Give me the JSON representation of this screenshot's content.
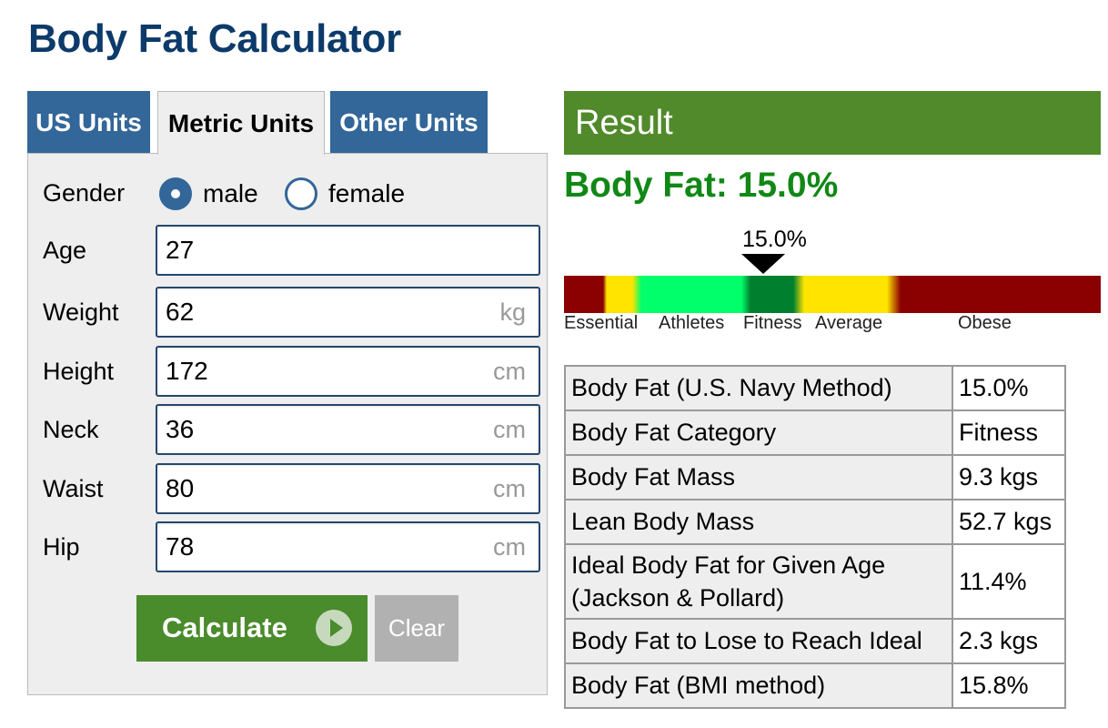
{
  "title": "Body Fat Calculator",
  "tabs": [
    {
      "label": "US Units"
    },
    {
      "label": "Metric Units"
    },
    {
      "label": "Other Units"
    }
  ],
  "form": {
    "gender_label": "Gender",
    "gender_options": [
      {
        "label": "male",
        "checked": true
      },
      {
        "label": "female",
        "checked": false
      }
    ],
    "fields": [
      {
        "label": "Age",
        "value": "27",
        "unit": ""
      },
      {
        "label": "Weight",
        "value": "62",
        "unit": "kg"
      },
      {
        "label": "Height",
        "value": "172",
        "unit": "cm"
      },
      {
        "label": "Neck",
        "value": "36",
        "unit": "cm"
      },
      {
        "label": "Waist",
        "value": "80",
        "unit": "cm"
      },
      {
        "label": "Hip",
        "value": "78",
        "unit": "cm"
      }
    ],
    "calculate_label": "Calculate",
    "clear_label": "Clear"
  },
  "result": {
    "header": "Result",
    "summary": "Body Fat: 15.0%",
    "gauge": {
      "marker_value": "15.0%",
      "categories": [
        "Essential",
        "Athletes",
        "Fitness",
        "Average",
        "Obese"
      ]
    },
    "table": [
      {
        "label": "Body Fat (U.S. Navy Method)",
        "value": "15.0%"
      },
      {
        "label": "Body Fat Category",
        "value": "Fitness"
      },
      {
        "label": "Body Fat Mass",
        "value": "9.3 kgs"
      },
      {
        "label": "Lean Body Mass",
        "value": "52.7 kgs"
      },
      {
        "label": "Ideal Body Fat for Given Age (Jackson & Pollard)",
        "value": "11.4%"
      },
      {
        "label": "Body Fat to Lose to Reach Ideal",
        "value": "2.3 kgs"
      },
      {
        "label": "Body Fat (BMI method)",
        "value": "15.8%"
      }
    ]
  },
  "colors": {
    "title": "#0c3a6a",
    "tab_blue": "#336699",
    "result_green": "#518a2a",
    "result_text_green": "#118816",
    "calculate_green": "#4a8b2c",
    "clear_gray": "#b1b1b1"
  }
}
